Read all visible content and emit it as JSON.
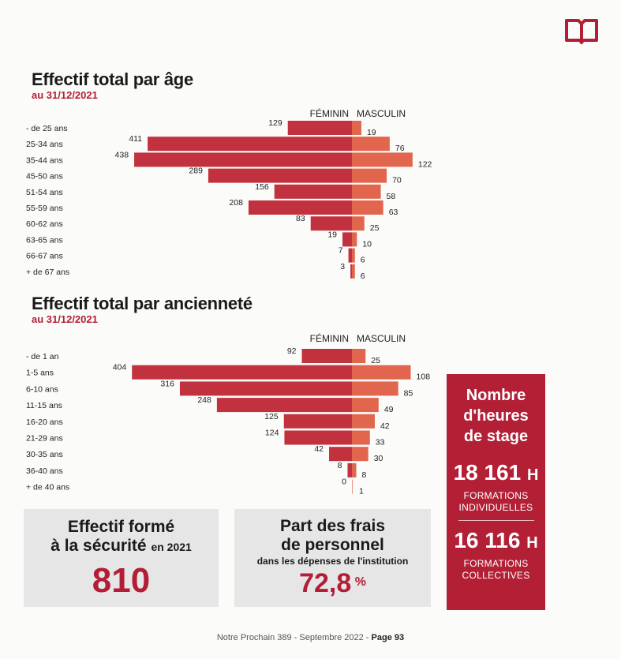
{
  "header": {
    "icon": "book-icon",
    "accent_color": "#b21e35"
  },
  "section1": {
    "title": "Effectif total par âge",
    "subtitle": "au 31/12/2021"
  },
  "section2": {
    "title": "Effectif total par ancienneté",
    "subtitle": "au 31/12/2021"
  },
  "chart_data": [
    {
      "type": "bar",
      "orientation": "horizontal-diverging",
      "title": "Effectif total par âge",
      "legend": [
        "FÉMININ",
        "MASCULIN"
      ],
      "categories": [
        "- de 25 ans",
        "25-34 ans",
        "35-44 ans",
        "45-50 ans",
        "51-54 ans",
        "55-59 ans",
        "60-62 ans",
        "63-65 ans",
        "66-67 ans",
        "+ de 67 ans"
      ],
      "series": [
        {
          "name": "FÉMININ",
          "values": [
            129,
            411,
            438,
            289,
            156,
            208,
            83,
            19,
            7,
            3
          ],
          "color": "#c1323e"
        },
        {
          "name": "MASCULIN",
          "values": [
            19,
            76,
            122,
            70,
            58,
            63,
            25,
            10,
            6,
            6
          ],
          "color": "#e2664d"
        }
      ]
    },
    {
      "type": "bar",
      "orientation": "horizontal-diverging",
      "title": "Effectif total par ancienneté",
      "legend": [
        "FÉMININ",
        "MASCULIN"
      ],
      "categories": [
        "- de 1 an",
        "1-5 ans",
        "6-10 ans",
        "11-15 ans",
        "16-20 ans",
        "21-29 ans",
        "30-35 ans",
        "36-40 ans",
        "+ de 40 ans"
      ],
      "series": [
        {
          "name": "FÉMININ",
          "values": [
            92,
            404,
            316,
            248,
            125,
            124,
            42,
            8,
            0
          ],
          "color": "#c1323e"
        },
        {
          "name": "MASCULIN",
          "values": [
            25,
            108,
            85,
            49,
            42,
            33,
            30,
            8,
            1
          ],
          "color": "#e2664d"
        }
      ]
    }
  ],
  "box_security": {
    "line1": "Effectif formé",
    "line2": "à la sécurité",
    "suffix": "en 2021",
    "value": "810"
  },
  "box_costs": {
    "line1": "Part des frais",
    "line2": "de personnel",
    "line3": "dans les dépenses de l'institution",
    "value": "72,8",
    "unit": "%"
  },
  "stage": {
    "head1": "Nombre",
    "head2": "d'heures",
    "head3": "de stage",
    "individual_value": "18 161",
    "individual_unit": "H",
    "individual_label1": "FORMATIONS",
    "individual_label2": "INDIVIDUELLES",
    "collective_value": "16 116",
    "collective_unit": "H",
    "collective_label1": "FORMATIONS",
    "collective_label2": "COLLECTIVES"
  },
  "footer": {
    "text": "Notre Prochain 389 - Septembre 2022 - ",
    "page": "Page 93"
  }
}
